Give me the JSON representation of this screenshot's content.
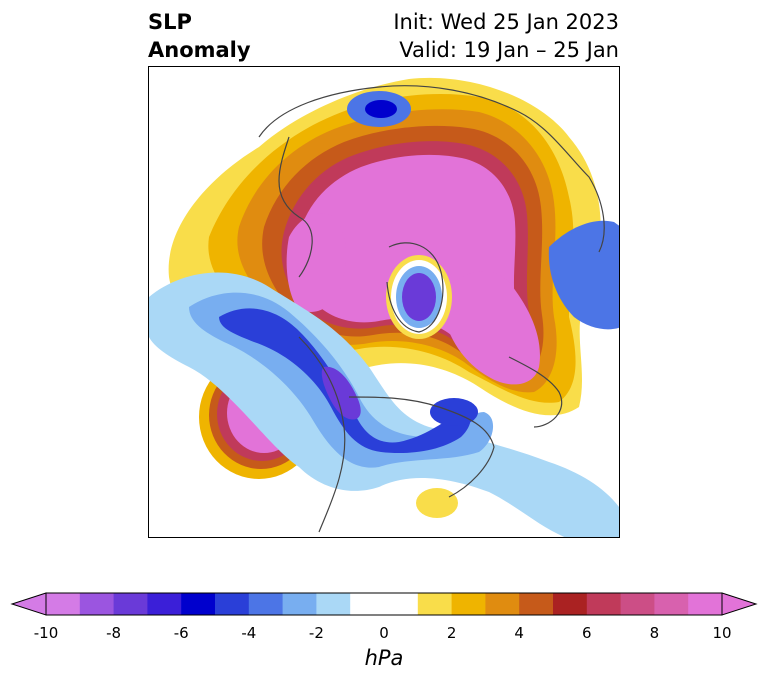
{
  "header": {
    "title_line1": "SLP",
    "title_line2": "Anomaly",
    "init_text": "Init: Wed 25 Jan 2023",
    "valid_text": "Valid: 19 Jan – 25 Jan"
  },
  "colorbar": {
    "unit": "hPa",
    "ticks": [
      "-10",
      "-8",
      "-6",
      "-4",
      "-2",
      "0",
      "2",
      "4",
      "6",
      "8",
      "10"
    ],
    "range": [
      -10,
      10
    ],
    "step": 1,
    "extend": "both",
    "colors": [
      "#d47be6",
      "#9b55e0",
      "#6a3ad8",
      "#3b1fd8",
      "#0000cd",
      "#2a3fd8",
      "#4c75e6",
      "#78aef0",
      "#aad8f6",
      "#ffffff",
      "#ffffff",
      "#f9dd4a",
      "#efb400",
      "#e08c10",
      "#c65a1a",
      "#aa2222",
      "#c03a5a",
      "#cc4e86",
      "#d861ae",
      "#e273d8"
    ]
  },
  "map": {
    "projection": "north-polar-stereographic",
    "region": "Northern Hemisphere",
    "features": [
      "coastlines",
      "country-borders",
      "state-borders"
    ]
  }
}
